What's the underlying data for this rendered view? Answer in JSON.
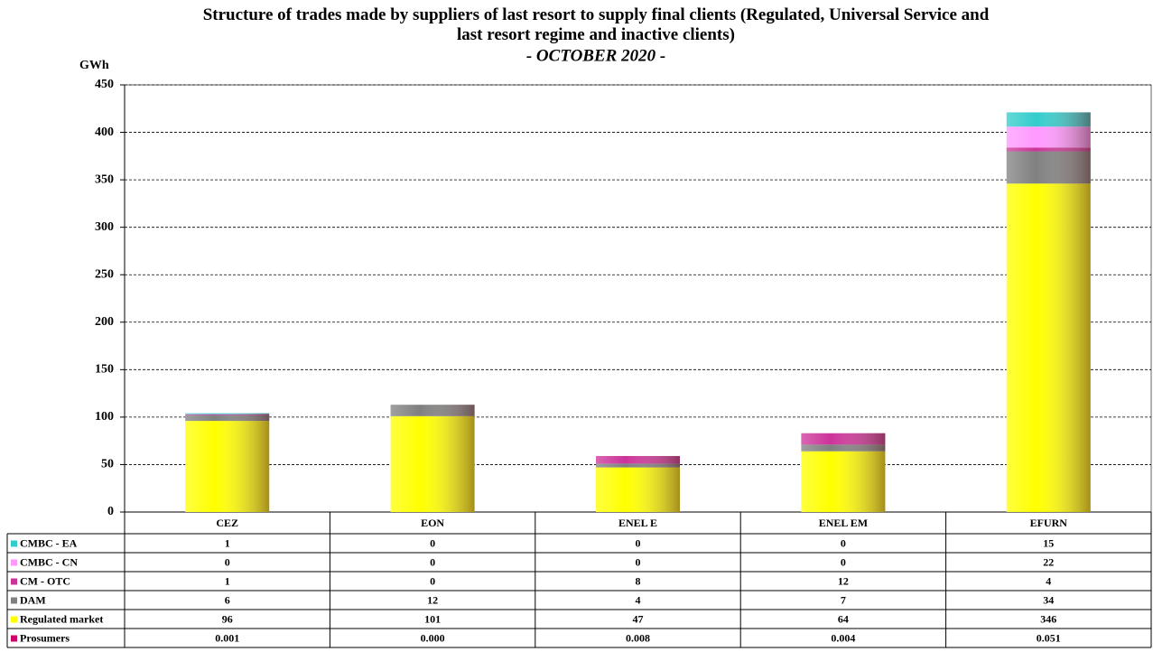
{
  "chart_data": {
    "type": "stacked-bar",
    "title": "Structure of trades made by suppliers of last resort to supply final clients (Regulated, Universal Service and last resort  regime and inactive clients)",
    "subtitle": "- OCTOBER 2020 -",
    "y_label": "GWh",
    "categories": [
      "CEZ",
      "EON",
      "ENEL E",
      "ENEL EM",
      "EFURN"
    ],
    "series": [
      {
        "name": "CMBC - EA",
        "color": "#33cccc",
        "values": [
          1,
          0,
          0,
          0,
          15
        ]
      },
      {
        "name": "CMBC - CN",
        "color": "#ff99ff",
        "values": [
          0,
          0,
          0,
          0,
          22
        ]
      },
      {
        "name": "CM - OTC",
        "color": "#cc3399",
        "values": [
          1,
          0,
          8,
          12,
          4
        ]
      },
      {
        "name": "DAM",
        "color": "#808080",
        "values": [
          6,
          12,
          4,
          7,
          34
        ]
      },
      {
        "name": "Regulated market",
        "color": "#ffff00",
        "values": [
          96,
          101,
          47,
          64,
          346
        ]
      },
      {
        "name": "Prosumers",
        "color": "#cc0066",
        "values": [
          0.001,
          0,
          0.008,
          0.004,
          0.051
        ],
        "value_labels": [
          "0.001",
          "0.000",
          "0.008",
          "0.004",
          "0.051"
        ]
      }
    ],
    "ylim": [
      0,
      450
    ],
    "yticks": [
      0,
      50,
      100,
      150,
      200,
      250,
      300,
      350,
      400,
      450
    ],
    "grid": true
  }
}
